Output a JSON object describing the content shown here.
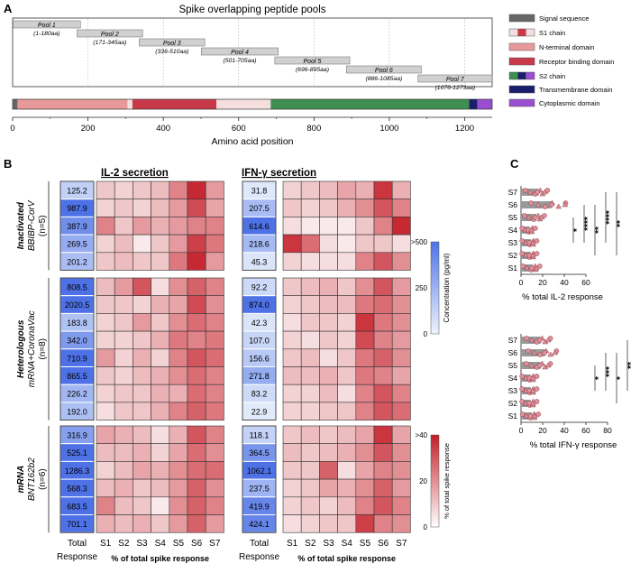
{
  "panels": {
    "a": "A",
    "b": "B",
    "c": "C"
  },
  "panel_a": {
    "title": "Spike overlapping peptide pools",
    "xlabel": "Amino acid position",
    "xticks": [
      0,
      200,
      400,
      600,
      800,
      1000,
      1200
    ],
    "xmax": 1273,
    "pools": [
      {
        "name": "Pool 1",
        "range": "(1-180aa)",
        "start": 1,
        "end": 180
      },
      {
        "name": "Pool 2",
        "range": "(171-345aa)",
        "start": 171,
        "end": 345
      },
      {
        "name": "Pool 3",
        "range": "(336-510aa)",
        "start": 336,
        "end": 510
      },
      {
        "name": "Pool 4",
        "range": "(501-705aa)",
        "start": 501,
        "end": 705
      },
      {
        "name": "Pool 5",
        "range": "(696-895aa)",
        "start": 696,
        "end": 895
      },
      {
        "name": "Pool 6",
        "range": "(886-1085aa)",
        "start": 886,
        "end": 1085
      },
      {
        "name": "Pool 7",
        "range": "(1076-1273aa)",
        "start": 1076,
        "end": 1273
      }
    ],
    "domains": [
      {
        "start": 1,
        "end": 13,
        "color": "#666666"
      },
      {
        "start": 14,
        "end": 305,
        "color": "#e89a9a"
      },
      {
        "start": 306,
        "end": 318,
        "color": "#f4dede"
      },
      {
        "start": 319,
        "end": 541,
        "color": "#c8394a"
      },
      {
        "start": 542,
        "end": 685,
        "color": "#f4dede"
      },
      {
        "start": 686,
        "end": 1212,
        "color": "#3e8f50"
      },
      {
        "start": 1213,
        "end": 1234,
        "color": "#1a1f6b"
      },
      {
        "start": 1235,
        "end": 1273,
        "color": "#9a4fd0"
      }
    ],
    "legend": [
      {
        "label": "Signal sequence",
        "colors": [
          "#666666"
        ]
      },
      {
        "label": "S1 chain",
        "colors": [
          "#f4dede",
          "#c8394a",
          "#f4dede"
        ]
      },
      {
        "label": "N-terminal domain",
        "colors": [
          "#e89a9a"
        ]
      },
      {
        "label": "Receptor binding domain",
        "colors": [
          "#c8394a"
        ]
      },
      {
        "label": "S2 chain",
        "colors": [
          "#3e8f50",
          "#1a1f6b",
          "#9a4fd0"
        ]
      },
      {
        "label": "Transmembrane domain",
        "colors": [
          "#1a1f6b"
        ]
      },
      {
        "label": "Cytoplasmic domain",
        "colors": [
          "#9a4fd0"
        ]
      }
    ]
  },
  "panel_b": {
    "il2_title": "IL-2 secretion",
    "ifn_title": "IFN-γ secretion",
    "cols": [
      "S1",
      "S2",
      "S3",
      "S4",
      "S5",
      "S6",
      "S7"
    ],
    "total_label": [
      "Total",
      "Response"
    ],
    "col_xlabel": "% of total spike response",
    "groups": [
      {
        "label_lines": [
          "Inactivated",
          "BBIBP-CorV",
          "(n=5)"
        ],
        "italic": [
          true,
          true,
          false
        ]
      },
      {
        "label_lines": [
          "Heterologous",
          "mRNA+CoronaVac",
          "(n=8)"
        ],
        "italic": [
          true,
          true,
          false
        ]
      },
      {
        "label_lines": [
          "mRNA",
          "BNT162b2",
          "(n=6)"
        ],
        "italic": [
          true,
          true,
          false
        ]
      }
    ],
    "il2_totals": [
      [
        "125.2",
        "987.9",
        "387.9",
        "269.5",
        "201.2"
      ],
      [
        "808.5",
        "2020.5",
        "183.8",
        "342.0",
        "710.9",
        "865.5",
        "226.2",
        "192.0"
      ],
      [
        "316.9",
        "525.1",
        "1286.3",
        "568.3",
        "683.5",
        "701.1"
      ]
    ],
    "ifn_totals": [
      [
        "31.8",
        "207.5",
        "614.6",
        "218.6",
        "45.3"
      ],
      [
        "92.2",
        "874.0",
        "42.3",
        "107.0",
        "156.6",
        "271.8",
        "83.2",
        "22.9"
      ],
      [
        "118.1",
        "364.5",
        "1062.1",
        "237.5",
        "419.9",
        "424.1"
      ]
    ],
    "il2_heat": [
      [
        [
          10,
          8,
          10,
          12,
          22,
          38,
          18
        ],
        [
          8,
          10,
          8,
          12,
          18,
          32,
          16
        ],
        [
          22,
          10,
          18,
          14,
          18,
          22,
          22
        ],
        [
          8,
          12,
          4,
          10,
          18,
          34,
          24
        ],
        [
          10,
          12,
          10,
          10,
          24,
          38,
          18
        ]
      ],
      [
        [
          12,
          18,
          30,
          6,
          20,
          28,
          22
        ],
        [
          10,
          10,
          8,
          14,
          16,
          32,
          20
        ],
        [
          8,
          10,
          18,
          10,
          20,
          26,
          22
        ],
        [
          8,
          8,
          10,
          14,
          24,
          22,
          24
        ],
        [
          18,
          8,
          14,
          8,
          22,
          30,
          26
        ],
        [
          10,
          8,
          12,
          14,
          20,
          26,
          22
        ],
        [
          8,
          10,
          10,
          14,
          14,
          26,
          22
        ],
        [
          6,
          10,
          10,
          14,
          22,
          28,
          24
        ]
      ],
      [
        [
          16,
          14,
          12,
          6,
          14,
          30,
          22
        ],
        [
          12,
          12,
          14,
          8,
          16,
          26,
          20
        ],
        [
          8,
          12,
          16,
          14,
          20,
          26,
          26
        ],
        [
          12,
          14,
          10,
          12,
          18,
          28,
          20
        ],
        [
          22,
          12,
          10,
          4,
          20,
          28,
          22
        ],
        [
          14,
          12,
          14,
          10,
          18,
          28,
          18
        ]
      ]
    ],
    "ifn_heat": [
      [
        [
          8,
          10,
          12,
          16,
          14,
          36,
          14
        ],
        [
          10,
          8,
          10,
          14,
          20,
          30,
          22
        ],
        [
          6,
          4,
          4,
          4,
          10,
          22,
          38
        ],
        [
          36,
          26,
          6,
          4,
          10,
          10,
          6
        ],
        [
          8,
          6,
          6,
          6,
          22,
          30,
          20
        ]
      ],
      [
        [
          10,
          12,
          14,
          10,
          20,
          30,
          18
        ],
        [
          8,
          10,
          12,
          12,
          24,
          26,
          20
        ],
        [
          6,
          10,
          10,
          8,
          36,
          24,
          20
        ],
        [
          8,
          6,
          10,
          8,
          32,
          22,
          18
        ],
        [
          10,
          12,
          6,
          10,
          24,
          28,
          20
        ],
        [
          12,
          12,
          14,
          10,
          24,
          22,
          16
        ],
        [
          8,
          8,
          12,
          6,
          22,
          30,
          22
        ],
        [
          8,
          8,
          10,
          10,
          22,
          30,
          26
        ]
      ],
      [
        [
          10,
          12,
          10,
          12,
          16,
          36,
          16
        ],
        [
          12,
          10,
          12,
          14,
          20,
          30,
          20
        ],
        [
          10,
          10,
          28,
          6,
          16,
          22,
          20
        ],
        [
          8,
          10,
          16,
          14,
          20,
          28,
          18
        ],
        [
          8,
          10,
          8,
          12,
          22,
          30,
          22
        ],
        [
          6,
          8,
          10,
          10,
          34,
          22,
          20
        ]
      ]
    ],
    "conc_legend": {
      "title": "Concentration (pg/ml)",
      "ticks": [
        ">500",
        "250",
        "0"
      ]
    },
    "pct_legend": {
      "title": "% of total spike response",
      "ticks": [
        ">40",
        "20",
        "0"
      ]
    }
  },
  "panel_c": {
    "rows": [
      "S7",
      "S6",
      "S5",
      "S4",
      "S3",
      "S2",
      "S1"
    ],
    "il2": {
      "xlabel": "% total IL-2 response",
      "xticks": [
        0,
        20,
        40,
        60
      ],
      "means": [
        16,
        28,
        14,
        8,
        9,
        9,
        11
      ],
      "sig": [
        "*",
        "****",
        "**",
        "****",
        "**"
      ]
    },
    "ifn": {
      "xlabel": "% total IFN-γ response",
      "xticks": [
        0,
        20,
        40,
        60,
        80
      ],
      "means": [
        18,
        22,
        18,
        9,
        9,
        9,
        10
      ],
      "sig": [
        "*",
        "***",
        "*",
        "**",
        "*"
      ]
    }
  }
}
